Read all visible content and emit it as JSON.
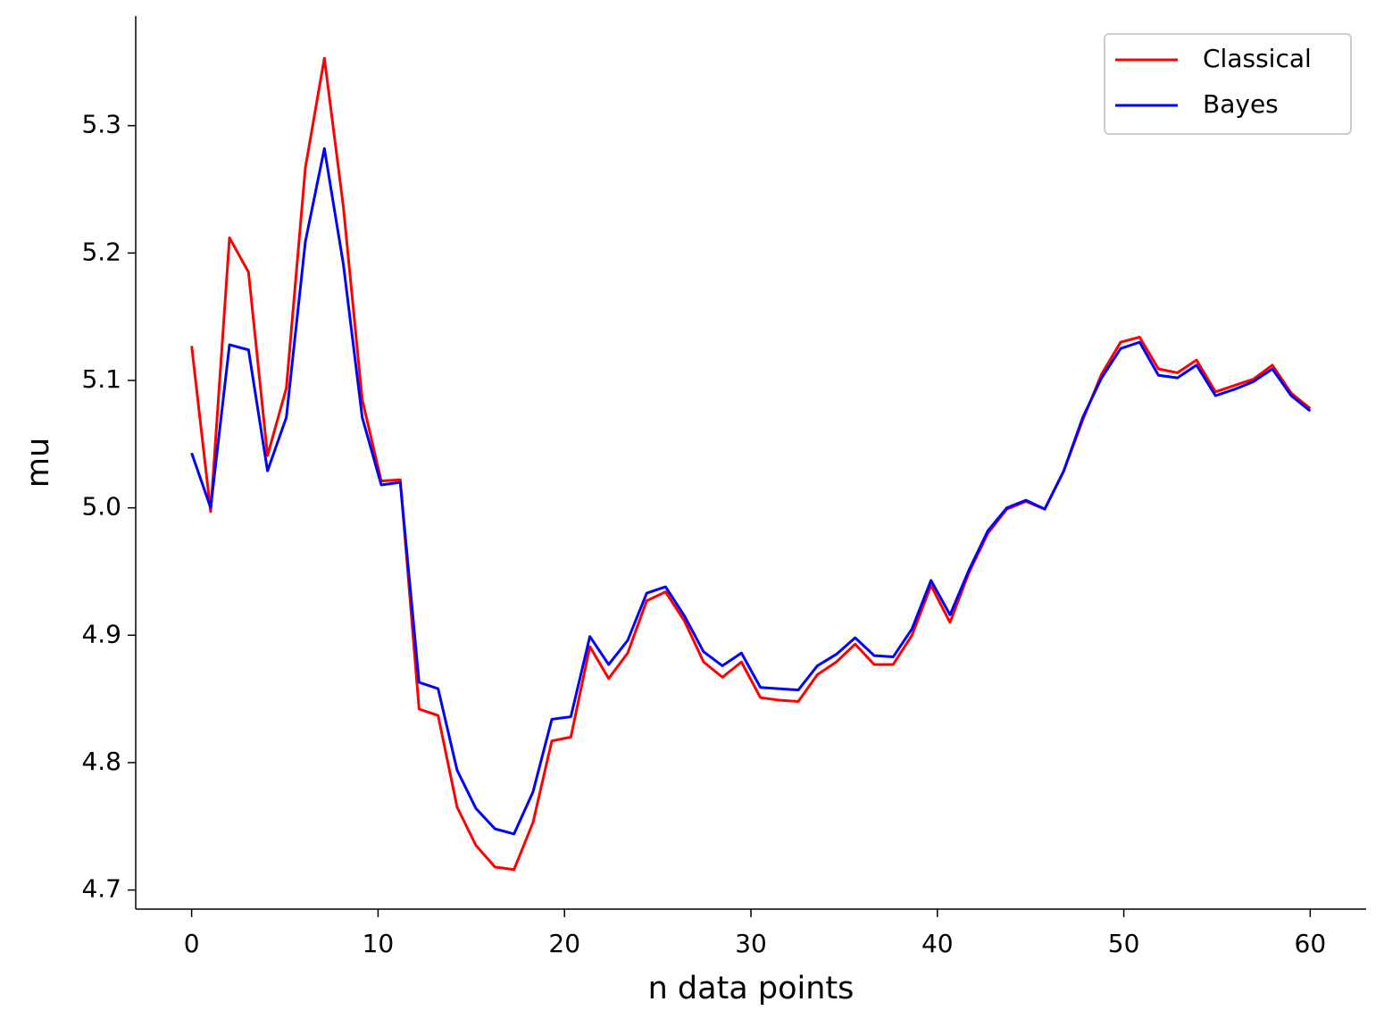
{
  "chart_data": {
    "type": "line",
    "xlabel": "n data points",
    "ylabel": "mu",
    "x": [
      0,
      1.02,
      2.03,
      3.05,
      4.07,
      5.08,
      6.1,
      7.12,
      8.14,
      9.15,
      10.17,
      11.19,
      12.2,
      13.22,
      14.24,
      15.25,
      16.27,
      17.29,
      18.31,
      19.32,
      20.34,
      21.36,
      22.37,
      23.39,
      24.41,
      25.42,
      26.44,
      27.46,
      28.47,
      29.49,
      30.51,
      31.53,
      32.54,
      33.56,
      34.58,
      35.59,
      36.61,
      37.63,
      38.64,
      39.66,
      40.68,
      41.69,
      42.71,
      43.73,
      44.75,
      45.76,
      46.78,
      47.8,
      48.81,
      49.83,
      50.85,
      51.86,
      52.88,
      53.9,
      54.92,
      55.93,
      56.95,
      57.97,
      58.98,
      60
    ],
    "series": [
      {
        "name": "Classical",
        "color": "#ff0000",
        "values": [
          5.127,
          4.997,
          5.212,
          5.185,
          5.041,
          5.094,
          5.267,
          5.353,
          5.236,
          5.085,
          5.021,
          5.022,
          4.842,
          4.837,
          4.765,
          4.735,
          4.718,
          4.716,
          4.753,
          4.817,
          4.82,
          4.891,
          4.866,
          4.886,
          4.927,
          4.934,
          4.911,
          4.879,
          4.867,
          4.879,
          4.851,
          4.849,
          4.848,
          4.869,
          4.879,
          4.893,
          4.877,
          4.877,
          4.9,
          4.939,
          4.91,
          4.949,
          4.98,
          4.999,
          5.005,
          4.999,
          5.029,
          5.069,
          5.105,
          5.13,
          5.134,
          5.109,
          5.106,
          5.116,
          5.091,
          5.096,
          5.101,
          5.112,
          5.09,
          5.078
        ]
      },
      {
        "name": "Bayes",
        "color": "#0000ff",
        "values": [
          5.043,
          5.0,
          5.128,
          5.124,
          5.029,
          5.071,
          5.209,
          5.282,
          5.191,
          5.071,
          5.018,
          5.02,
          4.863,
          4.858,
          4.794,
          4.764,
          4.748,
          4.744,
          4.777,
          4.834,
          4.836,
          4.899,
          4.877,
          4.896,
          4.933,
          4.938,
          4.915,
          4.887,
          4.876,
          4.886,
          4.859,
          4.858,
          4.857,
          4.876,
          4.885,
          4.898,
          4.884,
          4.883,
          4.905,
          4.943,
          4.916,
          4.951,
          4.982,
          5.0,
          5.006,
          4.999,
          5.029,
          5.071,
          5.102,
          5.125,
          5.13,
          5.104,
          5.102,
          5.112,
          5.088,
          5.093,
          5.099,
          5.109,
          5.088,
          5.076
        ]
      }
    ],
    "xlim": [
      -3,
      63
    ],
    "xticks": [
      0,
      10,
      20,
      30,
      40,
      50,
      60
    ],
    "ylim": [
      4.685,
      5.386
    ],
    "yticks": [
      4.7,
      4.8,
      4.9,
      {
        "value": 5,
        "label": "5.0"
      },
      5.1,
      5.2,
      5.3
    ],
    "grid": false,
    "legend": "upper right"
  }
}
